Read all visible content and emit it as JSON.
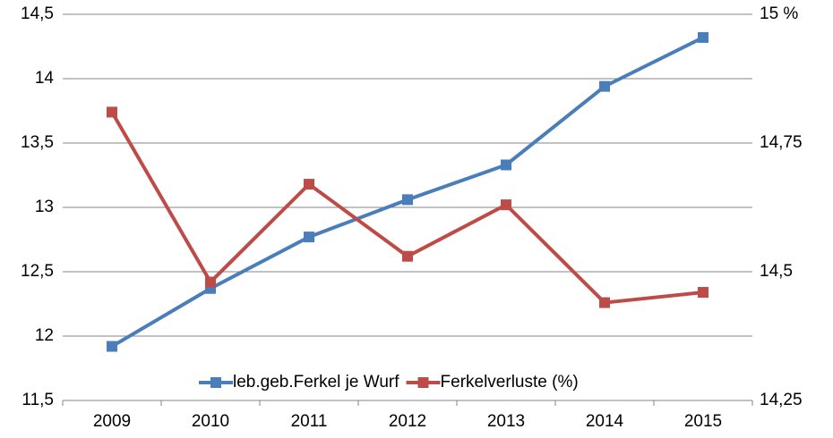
{
  "chart_data": {
    "type": "line",
    "categories": [
      "2009",
      "2010",
      "2011",
      "2012",
      "2013",
      "2014",
      "2015"
    ],
    "series": [
      {
        "name": "leb.geb.Ferkel je Wurf",
        "color": "#4a7ebb",
        "values": [
          11.92,
          12.37,
          12.77,
          13.06,
          13.33,
          13.94,
          14.32
        ]
      },
      {
        "name": "Ferkelverluste (%)",
        "color": "#be4b48",
        "axis": "y2",
        "values": [
          14.81,
          14.48,
          14.67,
          14.53,
          14.63,
          14.44,
          14.46
        ]
      }
    ],
    "ylim": [
      11.5,
      14.5
    ],
    "yticks": [
      {
        "value": 11.5,
        "label": "11,5"
      },
      12,
      {
        "value": 12.5,
        "label": "12,5"
      },
      13,
      {
        "value": 13.5,
        "label": "13,5"
      },
      14,
      {
        "value": 14.5,
        "label": "14,5"
      }
    ],
    "y2lim": [
      14.25,
      15
    ],
    "y2ticks": [
      {
        "value": 14.25,
        "label": "14,25"
      },
      {
        "value": 14.5,
        "label": "14,5"
      },
      {
        "value": 14.75,
        "label": "14,75"
      },
      {
        "value": 15,
        "label": "15 %"
      }
    ],
    "grid": true,
    "legend": "bottom"
  }
}
